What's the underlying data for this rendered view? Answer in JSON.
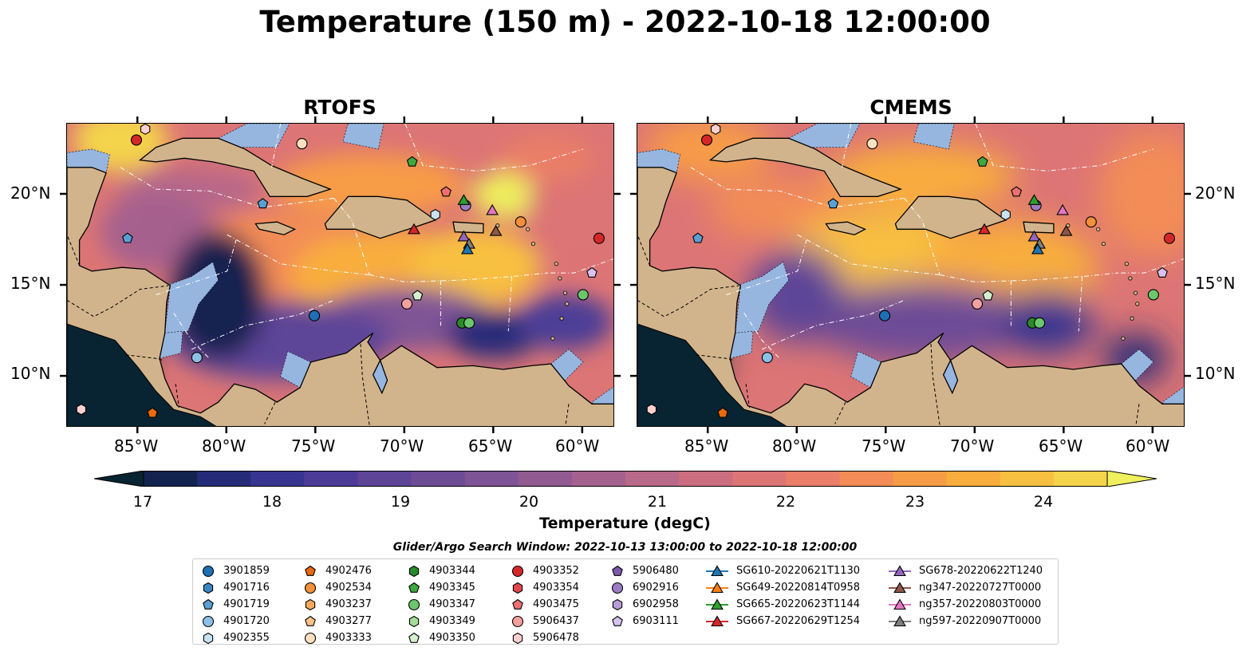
{
  "title": "Temperature (150 m) - 2022-10-18 12:00:00",
  "panels": [
    {
      "title": "RTOFS"
    },
    {
      "title": "CMEMS"
    }
  ],
  "axes": {
    "lon_labels": [
      "85°W",
      "80°W",
      "75°W",
      "70°W",
      "65°W",
      "60°W"
    ],
    "lat_labels": [
      "20°N",
      "15°N",
      "10°N"
    ],
    "lon_range": [
      -89,
      -58.2
    ],
    "lat_range": [
      7.2,
      23.9
    ]
  },
  "colorbar": {
    "label": "Temperature (degC)",
    "ticks": [
      "17",
      "18",
      "19",
      "20",
      "21",
      "22",
      "23",
      "24"
    ],
    "range": [
      16.75,
      24.5
    ],
    "extend": "both",
    "colors": [
      "#082331",
      "#13234f",
      "#262b79",
      "#383590",
      "#4c3c97",
      "#5d4497",
      "#6d4c96",
      "#7f5496",
      "#915b92",
      "#a5618e",
      "#b86888",
      "#ca6e80",
      "#dc7575",
      "#ea7e68",
      "#f38c56",
      "#f79c46",
      "#f9ad3d",
      "#f8c040",
      "#f4d44b",
      "#eef05d"
    ]
  },
  "legend": {
    "title": "Glider/Argo Search Window: 2022-10-13 13:00:00 to 2022-10-18 12:00:00",
    "columns": [
      [
        {
          "label": "3901859",
          "marker": "circle",
          "color": "#1f6fb4"
        },
        {
          "label": "4901716",
          "marker": "hexagon",
          "color": "#3a86c4"
        },
        {
          "label": "4901719",
          "marker": "pentagon",
          "color": "#5a9fd4"
        },
        {
          "label": "4901720",
          "marker": "circle",
          "color": "#8cc0e6"
        },
        {
          "label": "4902355",
          "marker": "hexagon",
          "color": "#c8e2f4"
        }
      ],
      [
        {
          "label": "4902476",
          "marker": "pentagon",
          "color": "#e86a0c"
        },
        {
          "label": "4902534",
          "marker": "circle",
          "color": "#f58f3a"
        },
        {
          "label": "4903237",
          "marker": "hexagon",
          "color": "#f8a95e"
        },
        {
          "label": "4903277",
          "marker": "pentagon",
          "color": "#fbc289"
        },
        {
          "label": "4903333",
          "marker": "circle",
          "color": "#fde0c0"
        }
      ],
      [
        {
          "label": "4903344",
          "marker": "hexagon",
          "color": "#2a8a2a"
        },
        {
          "label": "4903345",
          "marker": "pentagon",
          "color": "#3fa83f"
        },
        {
          "label": "4903347",
          "marker": "circle",
          "color": "#6cc66c"
        },
        {
          "label": "4903349",
          "marker": "hexagon",
          "color": "#a3dc94"
        },
        {
          "label": "4903350",
          "marker": "pentagon",
          "color": "#d4f0cc"
        }
      ],
      [
        {
          "label": "4903352",
          "marker": "circle",
          "color": "#d62728"
        },
        {
          "label": "4903354",
          "marker": "hexagon",
          "color": "#e2474a"
        },
        {
          "label": "4903475",
          "marker": "pentagon",
          "color": "#ee6f72"
        },
        {
          "label": "5906437",
          "marker": "circle",
          "color": "#f5a0a0"
        },
        {
          "label": "5906478",
          "marker": "hexagon",
          "color": "#fbd0cf"
        }
      ],
      [
        {
          "label": "5906480",
          "marker": "pentagon",
          "color": "#7a5aa8"
        },
        {
          "label": "6902916",
          "marker": "circle",
          "color": "#9a7cc4"
        },
        {
          "label": "6902958",
          "marker": "hexagon",
          "color": "#b79edb"
        },
        {
          "label": "6903111",
          "marker": "pentagon",
          "color": "#d6c3ef"
        }
      ],
      [
        {
          "label": "SG610-20220621T1130",
          "marker": "triangle-line",
          "color": "#1f77b4"
        },
        {
          "label": "SG649-20220814T0958",
          "marker": "triangle-line",
          "color": "#ff7f0e"
        },
        {
          "label": "SG665-20220623T1144",
          "marker": "triangle-line",
          "color": "#2ca02c"
        },
        {
          "label": "SG667-20220629T1254",
          "marker": "triangle-line",
          "color": "#d62728"
        }
      ],
      [
        {
          "label": "SG678-20220622T1240",
          "marker": "triangle-line",
          "color": "#9467bd"
        },
        {
          "label": "ng347-20220727T0000",
          "marker": "triangle-line",
          "color": "#8c564b"
        },
        {
          "label": "ng357-20220803T0000",
          "marker": "triangle-line",
          "color": "#e377c2"
        },
        {
          "label": "ng597-20220907T0000",
          "marker": "triangle-line",
          "color": "#7f7f7f"
        }
      ]
    ]
  },
  "map_colors": {
    "land": "#d2b48c",
    "shelf": "#96b6e0",
    "deep_cold": "#13234f",
    "dashed_lines": "#ffffff"
  }
}
